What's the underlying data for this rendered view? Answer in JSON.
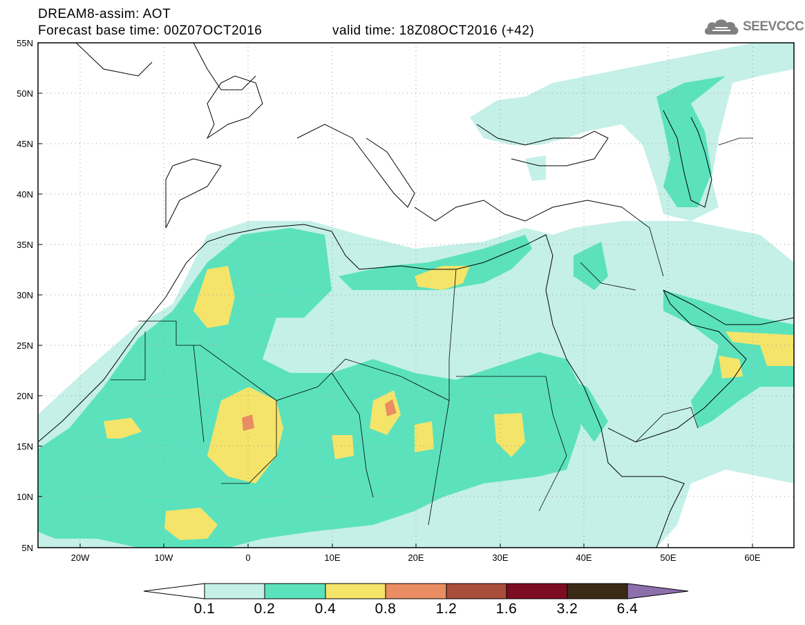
{
  "header": {
    "model_line": "DREAM8-assim: AOT",
    "base_time": "Forecast base time: 00Z07OCT2016",
    "valid_time": "valid time: 18Z08OCT2016 (+42)"
  },
  "logo": {
    "text": "SEEVCCC",
    "icon": "cloud-icon",
    "color": "#808080"
  },
  "map": {
    "lat_labels": [
      "55N",
      "50N",
      "45N",
      "40N",
      "35N",
      "30N",
      "25N",
      "20N",
      "15N",
      "10N",
      "5N"
    ],
    "lon_labels": [
      "20W",
      "10W",
      "0",
      "10E",
      "20E",
      "30E",
      "40E",
      "50E",
      "60E"
    ],
    "grid": "dotted"
  },
  "colorbar": {
    "levels": [
      "0.1",
      "0.2",
      "0.4",
      "0.8",
      "1.2",
      "1.6",
      "3.2",
      "6.4"
    ],
    "colors": [
      "#ffffff",
      "#c4f0e7",
      "#5be2bd",
      "#f5e46a",
      "#ea8d62",
      "#a84e3a",
      "#7c0c22",
      "#3b2a15",
      "#8c6fab"
    ]
  },
  "colors": {
    "very_light": "#c4f0e7",
    "teal": "#5be2bd",
    "yellow": "#f5e46a",
    "salmon": "#ea8d62"
  }
}
